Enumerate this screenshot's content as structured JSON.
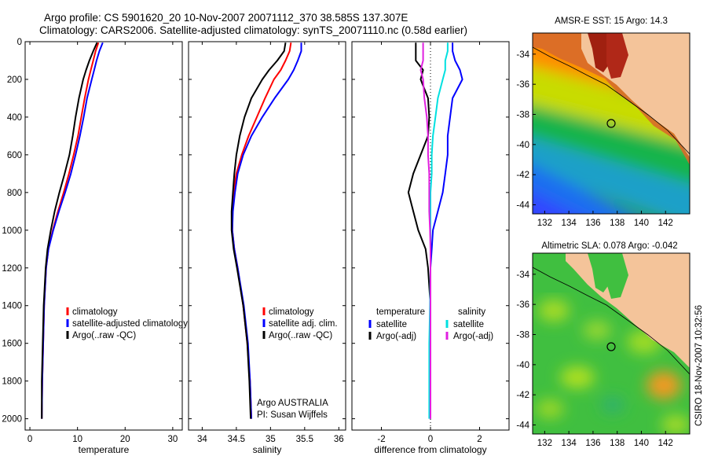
{
  "header": {
    "title_line1": "Argo profile: CS 5901620_20 10-Nov-2007 20071112_370 38.585S 137.307E",
    "title_line2": "Climatology: CARS2006. Satellite-adjusted climatology: synTS_20071110.nc (0.58d earlier)"
  },
  "side_caption": "CSIRO 18-Nov-2007 10:32:56",
  "colors": {
    "climatology": "#ff0000",
    "satellite": "#0000ff",
    "argo": "#000000",
    "salinity_satellite": "#00e0e0",
    "salinity_argo": "#e020e0",
    "land": "#f4c49a"
  },
  "chart_data": [
    {
      "type": "line",
      "xlabel": "temperature",
      "ylabel": "",
      "xlim": [
        -1,
        32
      ],
      "ylim": [
        2060,
        0
      ],
      "y_reversed": true,
      "xticks": [
        0,
        10,
        20,
        30
      ],
      "yticks": [
        0,
        200,
        400,
        600,
        800,
        1000,
        1200,
        1400,
        1600,
        1800,
        2000
      ],
      "depth": [
        5,
        50,
        100,
        150,
        200,
        300,
        400,
        500,
        600,
        700,
        800,
        900,
        1000,
        1100,
        1200,
        1400,
        1600,
        1800,
        2000
      ],
      "legend": [
        "climatology",
        "satellite-adjusted climatology",
        "Argo(..raw -QC)"
      ],
      "series": [
        {
          "name": "climatology",
          "color": "#ff0000",
          "values": [
            14.4,
            13.8,
            13.3,
            12.8,
            12.3,
            11.5,
            10.8,
            10.1,
            9.2,
            8.2,
            7.1,
            5.9,
            4.8,
            3.9,
            3.4,
            3.0,
            2.8,
            2.6,
            2.5
          ]
        },
        {
          "name": "satellite-adjusted climatology",
          "color": "#0000ff",
          "values": [
            15.3,
            14.6,
            14.0,
            13.5,
            13.0,
            12.0,
            11.3,
            10.5,
            9.6,
            8.6,
            7.4,
            6.1,
            4.9,
            3.9,
            3.4,
            3.0,
            2.8,
            2.6,
            2.5
          ]
        },
        {
          "name": "Argo(..raw -QC)",
          "color": "#000000",
          "values": [
            14.1,
            13.3,
            12.5,
            11.8,
            11.2,
            10.3,
            9.6,
            9.0,
            8.3,
            7.3,
            6.2,
            5.2,
            4.4,
            3.7,
            3.3,
            2.9,
            2.7,
            2.5,
            2.5
          ]
        }
      ]
    },
    {
      "type": "line",
      "xlabel": "salinity",
      "xlim": [
        33.8,
        36.1
      ],
      "ylim": [
        2060,
        0
      ],
      "y_reversed": true,
      "xticks": [
        34,
        34.5,
        35,
        35.5,
        36
      ],
      "depth": [
        5,
        50,
        100,
        150,
        200,
        300,
        400,
        500,
        600,
        700,
        800,
        900,
        1000,
        1100,
        1200,
        1400,
        1600,
        1800,
        2000
      ],
      "legend": [
        "climatology",
        "satellite adj. clim.",
        "Argo(..raw -QC)"
      ],
      "annotation": [
        "Argo AUSTRALIA",
        "PI: Susan Wijffels"
      ],
      "series": [
        {
          "name": "climatology",
          "color": "#ff0000",
          "values": [
            35.3,
            35.28,
            35.22,
            35.15,
            35.05,
            34.92,
            34.8,
            34.68,
            34.58,
            34.5,
            34.46,
            34.44,
            34.44,
            34.47,
            34.52,
            34.6,
            34.66,
            34.7,
            34.72
          ]
        },
        {
          "name": "satellite adj. clim.",
          "color": "#0000ff",
          "values": [
            35.45,
            35.45,
            35.4,
            35.34,
            35.26,
            35.06,
            34.88,
            34.72,
            34.6,
            34.52,
            34.48,
            34.45,
            34.44,
            34.47,
            34.52,
            34.61,
            34.67,
            34.7,
            34.72
          ]
        },
        {
          "name": "Argo(..raw -QC)",
          "color": "#000000",
          "values": [
            35.22,
            35.2,
            35.1,
            34.98,
            34.88,
            34.72,
            34.62,
            34.55,
            34.5,
            34.47,
            34.45,
            34.43,
            34.43,
            34.46,
            34.51,
            34.6,
            34.66,
            34.69,
            34.71
          ]
        }
      ]
    },
    {
      "type": "line",
      "xlabel": "difference from climatology",
      "xlim": [
        -3.2,
        3.2
      ],
      "ylim": [
        2060,
        0
      ],
      "y_reversed": true,
      "xticks": [
        -2,
        0,
        2
      ],
      "depth": [
        5,
        50,
        100,
        150,
        200,
        300,
        400,
        500,
        600,
        700,
        800,
        900,
        1000,
        1100,
        1200,
        1400,
        1600,
        1800,
        2000
      ],
      "legend_groups": [
        {
          "heading": "temperature",
          "entries": [
            "satellite",
            "Argo(-adj)"
          ]
        },
        {
          "heading": "salinity",
          "entries": [
            "satellite",
            "Argo(-adj)"
          ]
        }
      ],
      "series": [
        {
          "name": "temperature satellite",
          "color": "#0000ff",
          "values": [
            0.9,
            0.9,
            1.0,
            1.2,
            1.3,
            0.9,
            0.8,
            0.7,
            0.7,
            0.6,
            0.5,
            0.3,
            0.1,
            0.05,
            0.0,
            0.0,
            0.0,
            0.0,
            0.0
          ]
        },
        {
          "name": "temperature Argo(-adj)",
          "color": "#000000",
          "values": [
            -0.6,
            -0.6,
            -0.6,
            -0.3,
            -0.4,
            -0.1,
            -0.05,
            -0.1,
            -0.4,
            -0.7,
            -0.9,
            -0.7,
            -0.5,
            -0.2,
            -0.1,
            0.0,
            0.0,
            0.0,
            0.0
          ]
        },
        {
          "name": "salinity satellite",
          "color": "#00e0e0",
          "values": [
            0.7,
            0.7,
            0.6,
            0.6,
            0.5,
            0.3,
            0.2,
            0.1,
            0.05,
            0.05,
            0.0,
            0.0,
            0.0,
            0.0,
            0.0,
            -0.02,
            -0.05,
            -0.05,
            -0.05
          ]
        },
        {
          "name": "salinity Argo(-adj)",
          "color": "#e020e0",
          "values": [
            -0.3,
            -0.3,
            -0.3,
            -0.4,
            -0.3,
            -0.25,
            -0.15,
            -0.1,
            -0.1,
            -0.05,
            -0.05,
            -0.05,
            -0.02,
            0.0,
            0.0,
            0.0,
            0.0,
            0.0,
            0.0
          ]
        }
      ]
    },
    {
      "type": "heatmap",
      "title": "AMSR-E SST: 15 Argo: 14.3",
      "xlim": [
        131,
        144
      ],
      "ylim": [
        -44.6,
        -32.6
      ],
      "xticks": [
        132,
        134,
        136,
        138,
        140,
        142
      ],
      "yticks": [
        -34,
        -36,
        -38,
        -40,
        -42,
        -44
      ],
      "argo_position": {
        "lon": 137.307,
        "lat": -38.585
      }
    },
    {
      "type": "heatmap",
      "title": "Altimetric SLA: 0.078 Argo: -0.042",
      "xlim": [
        131,
        144
      ],
      "ylim": [
        -44.6,
        -32.6
      ],
      "xticks": [
        132,
        134,
        136,
        138,
        140,
        142
      ],
      "yticks": [
        -34,
        -36,
        -38,
        -40,
        -42,
        -44
      ],
      "argo_position": {
        "lon": 137.307,
        "lat": -38.585
      }
    }
  ]
}
